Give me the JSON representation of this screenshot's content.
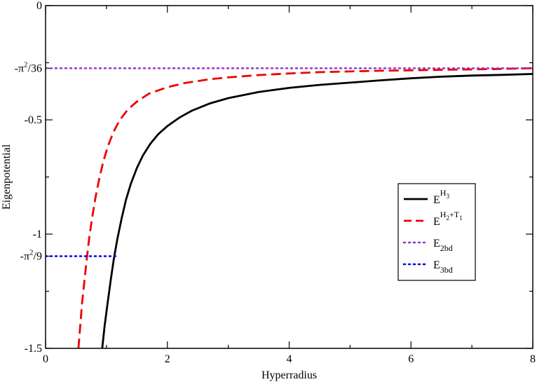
{
  "chart_data": {
    "type": "line",
    "xlabel": "Hyperradius",
    "ylabel": "Eigenpotential",
    "xlim": [
      0,
      8
    ],
    "ylim": [
      -1.5,
      0
    ],
    "grid": false,
    "legend_position": "right",
    "x_ticks": [
      {
        "value": 0,
        "label": "0"
      },
      {
        "value": 2,
        "label": "2"
      },
      {
        "value": 4,
        "label": "4"
      },
      {
        "value": 6,
        "label": "6"
      },
      {
        "value": 8,
        "label": "8"
      }
    ],
    "y_ticks": [
      {
        "value": 0,
        "label": "0"
      },
      {
        "value": -0.5,
        "label": "-0.5"
      },
      {
        "value": -1,
        "label": "-1"
      },
      {
        "value": -1.5,
        "label": "-1.5"
      }
    ],
    "y_special_ticks": [
      {
        "value": -0.2742,
        "base": "-π",
        "sup": "2",
        "tail": "/36"
      },
      {
        "value": -1.0966,
        "base": "-π",
        "sup": "2",
        "tail": "/9"
      }
    ],
    "series": [
      {
        "name": "E^{H_3}",
        "legend": {
          "base": "E",
          "sup": "H",
          "supsub": "3",
          "sup2": "",
          "sub": ""
        },
        "color": "#000000",
        "dash": "solid",
        "x": [
          0.93,
          0.97,
          1.02,
          1.07,
          1.12,
          1.18,
          1.25,
          1.32,
          1.4,
          1.5,
          1.6,
          1.72,
          1.85,
          2.0,
          2.2,
          2.4,
          2.7,
          3.0,
          3.5,
          4.0,
          4.5,
          5.0,
          5.5,
          6.0,
          6.5,
          7.0,
          7.5,
          8.0
        ],
        "y": [
          -1.5,
          -1.4,
          -1.3,
          -1.2,
          -1.11,
          -1.02,
          -0.93,
          -0.85,
          -0.78,
          -0.71,
          -0.655,
          -0.605,
          -0.563,
          -0.527,
          -0.49,
          -0.46,
          -0.428,
          -0.405,
          -0.378,
          -0.36,
          -0.347,
          -0.337,
          -0.327,
          -0.318,
          -0.311,
          -0.306,
          -0.303,
          -0.299
        ]
      },
      {
        "name": "E^{H_2+T_1}",
        "legend": {
          "base": "E",
          "sup": "H",
          "supsub": "2",
          "sup2": "+T",
          "sup2sub": "1",
          "sub": ""
        },
        "color": "#ee0000",
        "dash": "dashed",
        "x": [
          0.54,
          0.57,
          0.6,
          0.64,
          0.68,
          0.72,
          0.77,
          0.82,
          0.88,
          0.95,
          1.03,
          1.12,
          1.22,
          1.35,
          1.5,
          1.7,
          2.0,
          2.3,
          2.7,
          3.0,
          3.5,
          4.0,
          4.5,
          5.0,
          5.5,
          6.0,
          6.5,
          7.0,
          7.5,
          8.0
        ],
        "y": [
          -1.5,
          -1.4,
          -1.3,
          -1.2,
          -1.1,
          -1.01,
          -0.92,
          -0.84,
          -0.76,
          -0.68,
          -0.61,
          -0.55,
          -0.5,
          -0.455,
          -0.42,
          -0.385,
          -0.357,
          -0.338,
          -0.322,
          -0.314,
          -0.304,
          -0.297,
          -0.291,
          -0.288,
          -0.285,
          -0.283,
          -0.281,
          -0.279,
          -0.277,
          -0.274
        ]
      },
      {
        "name": "E_{2bd}",
        "legend": {
          "base": "E",
          "sup": "",
          "sub": "2bd"
        },
        "color": "#9933cc",
        "dash": "dotted",
        "x": [
          0,
          8
        ],
        "y": [
          -0.2742,
          -0.2742
        ]
      },
      {
        "name": "E_{3bd}",
        "legend": {
          "base": "E",
          "sup": "",
          "sub": "3bd"
        },
        "color": "#0000ee",
        "dash": "dotted",
        "x": [
          0,
          1.15
        ],
        "y": [
          -1.0966,
          -1.0966
        ]
      }
    ]
  }
}
